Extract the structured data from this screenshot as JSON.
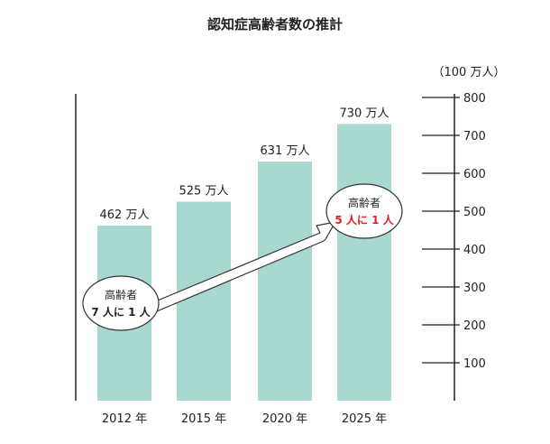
{
  "chart_data": {
    "type": "bar",
    "title": "認知症高齢者数の推計",
    "categories": [
      "2012 年",
      "2015 年",
      "2020 年",
      "2025 年"
    ],
    "values": [
      462,
      525,
      631,
      730
    ],
    "value_labels": [
      "462 万人",
      "525 万人",
      "631 万人",
      "730 万人"
    ],
    "unit_label": "（100 万人）",
    "ylim": [
      0,
      800
    ],
    "yticks": [
      100,
      200,
      300,
      400,
      500,
      600,
      700,
      800
    ],
    "y_axis_side": "right",
    "grid": false,
    "bar_color": "#a8d8d0",
    "annotations": {
      "start": {
        "line1": "高齢者",
        "line2": "7 人に 1 人"
      },
      "end": {
        "line1": "高齢者",
        "line2": "5 人に 1 人",
        "line2_color": "#e02020"
      }
    }
  }
}
